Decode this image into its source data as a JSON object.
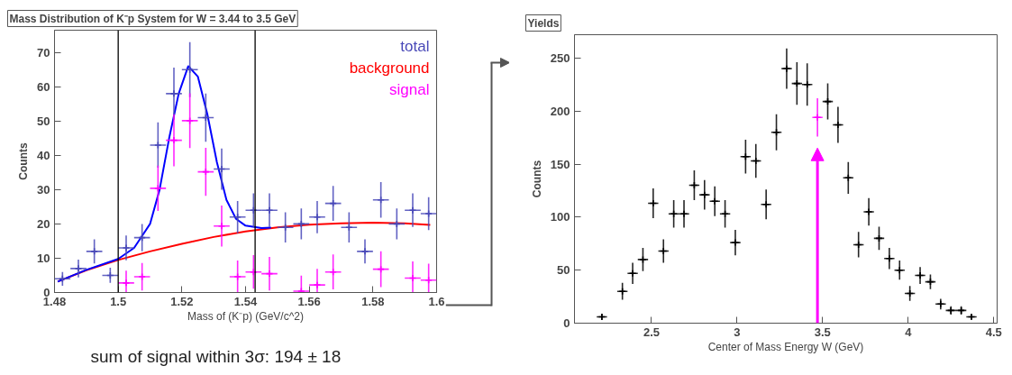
{
  "chart_data": [
    {
      "type": "scatter",
      "title": "Mass Distribution of K⁻p System for W = 3.44 to 3.5 GeV",
      "xlabel": "Mass of (K⁻p) (GeV/c^2)",
      "ylabel": "Counts",
      "xlim": [
        1.48,
        1.6
      ],
      "ylim": [
        0,
        76.5
      ],
      "xticks": [
        1.48,
        1.5,
        1.52,
        1.54,
        1.56,
        1.58,
        1.6
      ],
      "yticks": [
        0,
        10,
        20,
        30,
        40,
        50,
        60,
        70
      ],
      "grid": false,
      "series": [
        {
          "name": "total",
          "color": "#4848b8",
          "marker": "cross",
          "x": [
            1.4825,
            1.4875,
            1.4925,
            1.4975,
            1.5025,
            1.5075,
            1.5125,
            1.5175,
            1.5225,
            1.5275,
            1.5325,
            1.5375,
            1.5425,
            1.5475,
            1.5525,
            1.5575,
            1.5625,
            1.5675,
            1.5725,
            1.5775,
            1.5825,
            1.5875,
            1.5925,
            1.5975
          ],
          "values": [
            4,
            7,
            12,
            5,
            13,
            16,
            43,
            58,
            65,
            51,
            36,
            22,
            24,
            24,
            19,
            20,
            22,
            26,
            19,
            12,
            27,
            20,
            24,
            23
          ],
          "errors": [
            2,
            2.6,
            3.5,
            2.2,
            3.6,
            4,
            6.6,
            7.6,
            8,
            7,
            6,
            4.7,
            4.9,
            4.9,
            4.4,
            4.5,
            4.7,
            5.1,
            4.4,
            3.5,
            5.2,
            4.5,
            4.9,
            4.8
          ],
          "xerrors": [
            0.0025,
            0.0025,
            0.0025,
            0.0025,
            0.0025,
            0.0025,
            0.0025,
            0.0025,
            0.0025,
            0.0025,
            0.0025,
            0.0025,
            0.0025,
            0.0025,
            0.0025,
            0.0025,
            0.0025,
            0.0025,
            0.0025,
            0.0025,
            0.0025,
            0.0025,
            0.0025,
            0.0025
          ]
        },
        {
          "name": "background",
          "type": "line",
          "color": "#ff0000",
          "x": [
            1.481,
            1.49,
            1.5,
            1.51,
            1.52,
            1.53,
            1.54,
            1.55,
            1.56,
            1.57,
            1.58,
            1.59,
            1.598
          ],
          "values": [
            3.2,
            6.5,
            9.5,
            12,
            14.2,
            16.2,
            17.8,
            19,
            19.8,
            20.2,
            20.4,
            20.2,
            19.7
          ]
        },
        {
          "name": "signal",
          "color": "#ff00ff",
          "marker": "cross",
          "x": [
            1.5025,
            1.5075,
            1.5125,
            1.5175,
            1.5225,
            1.5275,
            1.5325,
            1.5375,
            1.5425,
            1.5475,
            1.5575,
            1.5625,
            1.5675,
            1.5825,
            1.5925,
            1.5975
          ],
          "values": [
            2.8,
            4.6,
            30.4,
            44.4,
            50.1,
            35.2,
            19.4,
            4.6,
            6,
            5.5,
            0.4,
            2.2,
            6,
            6.8,
            4.2,
            3.6
          ],
          "errors": [
            [
              0,
              6.4
            ],
            4,
            6.6,
            7.6,
            8,
            7,
            6,
            [
              0,
              9.3
            ],
            4.9,
            4.9,
            [
              0,
              4.9
            ],
            [
              0,
              6.9
            ],
            5.1,
            5.2,
            [
              0,
              9.1
            ],
            [
              0,
              8.4
            ]
          ],
          "xerrors": [
            0.0025,
            0.0025,
            0.0025,
            0.0025,
            0.0025,
            0.0025,
            0.0025,
            0.0025,
            0.0025,
            0.0025,
            0.0025,
            0.0025,
            0.0025,
            0.0025,
            0.0025,
            0.0025
          ]
        },
        {
          "type": "line",
          "color": "#0000ff",
          "x": [
            1.481,
            1.49,
            1.5,
            1.505,
            1.51,
            1.513,
            1.516,
            1.519,
            1.522,
            1.525,
            1.528,
            1.531,
            1.534,
            1.537,
            1.54,
            1.545,
            1.548
          ],
          "values": [
            3.2,
            6.6,
            9.8,
            13,
            20,
            30,
            45,
            58,
            66,
            63,
            52,
            38,
            27,
            21.5,
            19.5,
            18.8,
            18.9
          ]
        }
      ],
      "ref_lines": [
        {
          "axis": "x",
          "value": 1.5,
          "color": "#000000"
        },
        {
          "axis": "x",
          "value": 1.543,
          "color": "#000000"
        }
      ],
      "annotations": [
        "sum of signal within 3σ: 194 ± 18"
      ]
    },
    {
      "type": "scatter",
      "title": "Yields",
      "xlabel": "Center of Mass Energy W (GeV)",
      "ylabel": "Counts",
      "xlim": [
        2.05,
        4.52
      ],
      "ylim": [
        0,
        272
      ],
      "xticks": [
        2.5,
        3,
        3.5,
        4,
        4.5
      ],
      "yticks": [
        0,
        50,
        100,
        150,
        200,
        250
      ],
      "grid": false,
      "series": [
        {
          "color": "#000000",
          "marker": "cross",
          "x": [
            2.21,
            2.33,
            2.39,
            2.45,
            2.51,
            2.57,
            2.63,
            2.69,
            2.75,
            2.81,
            2.87,
            2.93,
            2.99,
            3.05,
            3.11,
            3.17,
            3.23,
            3.29,
            3.35,
            3.41,
            3.53,
            3.59,
            3.65,
            3.71,
            3.77,
            3.83,
            3.89,
            3.95,
            4.01,
            4.07,
            4.13,
            4.19,
            4.25,
            4.31,
            4.37
          ],
          "values": [
            6,
            30,
            47,
            60,
            113,
            68,
            103,
            103,
            130,
            121,
            115,
            103,
            76,
            157,
            153,
            112,
            180,
            240,
            226,
            225,
            209,
            187,
            137,
            74,
            105,
            80,
            61,
            50,
            28,
            45,
            39,
            18,
            12,
            12,
            6
          ],
          "errors": [
            3,
            8,
            10,
            11,
            14,
            11,
            13,
            13,
            14,
            14,
            14,
            13,
            12,
            16,
            16,
            14,
            17,
            19,
            20,
            20,
            17,
            17,
            15,
            12,
            13,
            11,
            10,
            9,
            7,
            8,
            7,
            5,
            4,
            4,
            2
          ],
          "xerrors": [
            0.03,
            0.03,
            0.03,
            0.03,
            0.03,
            0.03,
            0.03,
            0.03,
            0.03,
            0.03,
            0.03,
            0.03,
            0.03,
            0.03,
            0.03,
            0.03,
            0.03,
            0.03,
            0.03,
            0.03,
            0.03,
            0.03,
            0.03,
            0.03,
            0.03,
            0.03,
            0.03,
            0.03,
            0.03,
            0.03,
            0.03,
            0.03,
            0.03,
            0.03,
            0.03
          ]
        },
        {
          "color": "#ff00ff",
          "marker": "cross",
          "x": [
            3.47
          ],
          "values": [
            194
          ],
          "errors": [
            18
          ],
          "xerrors": [
            0.03
          ]
        }
      ]
    }
  ]
}
